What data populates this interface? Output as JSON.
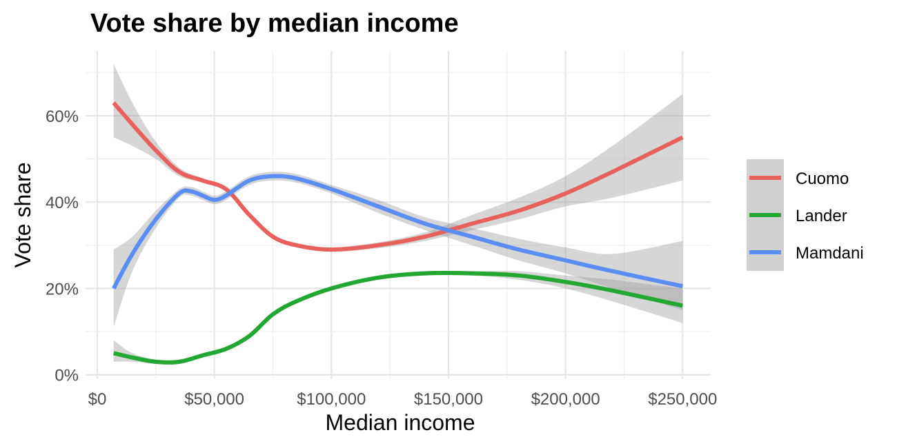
{
  "chart_data": {
    "type": "line",
    "title": "Vote share by median income",
    "xlabel": "Median income",
    "ylabel": "Vote share",
    "xlim": [
      -5000,
      262000
    ],
    "ylim": [
      -0.01,
      0.75
    ],
    "x_ticks": [
      0,
      50000,
      100000,
      150000,
      200000,
      250000
    ],
    "x_tick_labels": [
      "$0",
      "$50,000",
      "$100,000",
      "$150,000",
      "$200,000",
      "$250,000"
    ],
    "y_ticks": [
      0,
      0.2,
      0.4,
      0.6
    ],
    "y_tick_labels": [
      "0%",
      "20%",
      "40%",
      "60%"
    ],
    "grid": true,
    "legend_position": "right",
    "series": [
      {
        "name": "Cuomo",
        "color": "#e8615f",
        "x": [
          7000,
          15000,
          25000,
          35000,
          45000,
          55000,
          65000,
          75000,
          85000,
          100000,
          120000,
          140000,
          160000,
          180000,
          200000,
          220000,
          250000
        ],
        "y": [
          0.63,
          0.58,
          0.52,
          0.47,
          0.45,
          0.43,
          0.37,
          0.32,
          0.3,
          0.29,
          0.3,
          0.32,
          0.35,
          0.38,
          0.42,
          0.47,
          0.55
        ],
        "band_lower": [
          0.55,
          0.53,
          0.5,
          0.46,
          0.445,
          0.425,
          0.365,
          0.315,
          0.295,
          0.285,
          0.293,
          0.31,
          0.335,
          0.36,
          0.39,
          0.41,
          0.45
        ],
        "band_upper": [
          0.72,
          0.63,
          0.54,
          0.48,
          0.455,
          0.435,
          0.375,
          0.325,
          0.305,
          0.295,
          0.307,
          0.33,
          0.37,
          0.41,
          0.46,
          0.53,
          0.65
        ]
      },
      {
        "name": "Lander",
        "color": "#22a832",
        "x": [
          7000,
          15000,
          25000,
          35000,
          45000,
          55000,
          65000,
          75000,
          85000,
          100000,
          120000,
          140000,
          160000,
          180000,
          200000,
          220000,
          250000
        ],
        "y": [
          0.05,
          0.04,
          0.03,
          0.03,
          0.045,
          0.06,
          0.09,
          0.14,
          0.17,
          0.2,
          0.225,
          0.235,
          0.235,
          0.23,
          0.215,
          0.195,
          0.16
        ],
        "band_lower": [
          0.03,
          0.03,
          0.025,
          0.025,
          0.04,
          0.055,
          0.085,
          0.135,
          0.165,
          0.195,
          0.22,
          0.23,
          0.23,
          0.22,
          0.2,
          0.17,
          0.12
        ],
        "band_upper": [
          0.08,
          0.05,
          0.035,
          0.035,
          0.05,
          0.065,
          0.095,
          0.145,
          0.175,
          0.205,
          0.23,
          0.24,
          0.24,
          0.24,
          0.23,
          0.22,
          0.2
        ]
      },
      {
        "name": "Mamdani",
        "color": "#5b8df5",
        "x": [
          7000,
          15000,
          25000,
          35000,
          40000,
          45000,
          50000,
          55000,
          65000,
          75000,
          85000,
          100000,
          120000,
          140000,
          160000,
          180000,
          200000,
          220000,
          250000
        ],
        "y": [
          0.2,
          0.28,
          0.36,
          0.42,
          0.425,
          0.415,
          0.405,
          0.415,
          0.45,
          0.46,
          0.455,
          0.43,
          0.39,
          0.35,
          0.32,
          0.29,
          0.265,
          0.24,
          0.205
        ],
        "band_lower": [
          0.11,
          0.24,
          0.34,
          0.41,
          0.415,
          0.405,
          0.395,
          0.405,
          0.44,
          0.45,
          0.445,
          0.42,
          0.375,
          0.335,
          0.3,
          0.265,
          0.235,
          0.2,
          0.15
        ],
        "band_upper": [
          0.29,
          0.32,
          0.38,
          0.43,
          0.435,
          0.425,
          0.415,
          0.425,
          0.46,
          0.47,
          0.465,
          0.44,
          0.405,
          0.365,
          0.34,
          0.315,
          0.295,
          0.28,
          0.31
        ]
      }
    ]
  }
}
